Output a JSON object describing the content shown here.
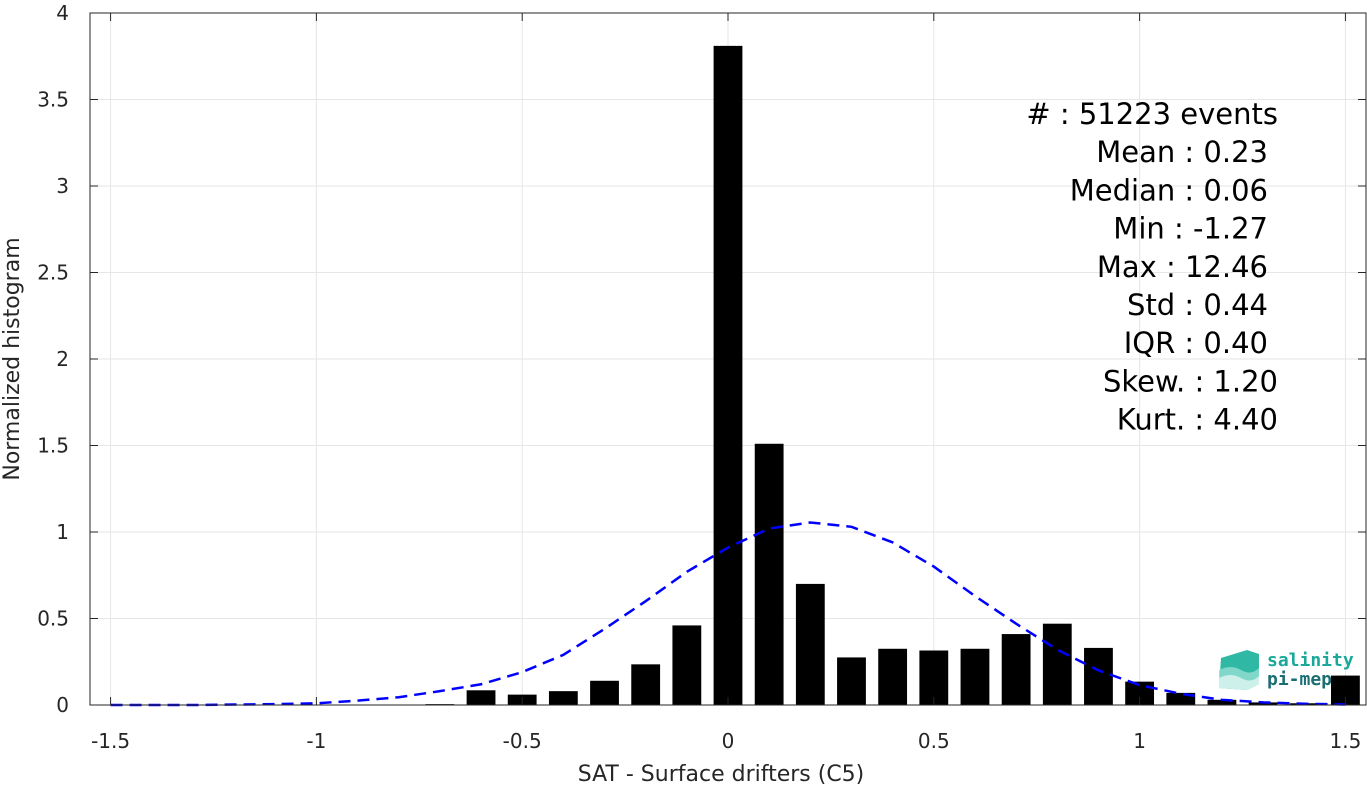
{
  "chart_data": {
    "type": "bar",
    "xlabel": "SAT - Surface drifters (C5)",
    "ylabel": "Normalized histogram",
    "xlim": [
      -1.55,
      1.55
    ],
    "ylim": [
      0,
      4
    ],
    "grid": true,
    "x_ticks": [
      -1.5,
      -1,
      -0.5,
      0,
      0.5,
      1,
      1.5
    ],
    "x_tick_labels": [
      "-1.5",
      "-1",
      "-0.5",
      "0",
      "0.5",
      "1",
      "1.5"
    ],
    "y_ticks": [
      0,
      0.5,
      1,
      1.5,
      2,
      2.5,
      3,
      3.5,
      4
    ],
    "y_tick_labels": [
      "0",
      "0.5",
      "1",
      "1.5",
      "2",
      "2.5",
      "3",
      "3.5",
      "4"
    ],
    "bar_width": 0.07,
    "bar_color": "#000000",
    "bars": {
      "x": [
        -1.5,
        -1.4,
        -1.3,
        -1.2,
        -1.1,
        -1.0,
        -0.9,
        -0.8,
        -0.7,
        -0.6,
        -0.5,
        -0.4,
        -0.3,
        -0.2,
        -0.1,
        0.0,
        0.1,
        0.2,
        0.3,
        0.4,
        0.5,
        0.6,
        0.7,
        0.8,
        0.9,
        1.0,
        1.1,
        1.2,
        1.3,
        1.4,
        1.5
      ],
      "values": [
        0,
        0,
        0,
        0,
        0,
        0,
        0,
        0,
        0.005,
        0.085,
        0.06,
        0.08,
        0.14,
        0.235,
        0.46,
        3.81,
        1.51,
        0.7,
        0.275,
        0.325,
        0.315,
        0.325,
        0.41,
        0.47,
        0.33,
        0.135,
        0.07,
        0.03,
        0.015,
        0.01,
        0.17
      ]
    },
    "fit_curve": {
      "name": "",
      "style": "dashed",
      "color": "#0000ff",
      "x": [
        -1.5,
        -1.3,
        -1.1,
        -1.0,
        -0.9,
        -0.8,
        -0.7,
        -0.6,
        -0.5,
        -0.4,
        -0.3,
        -0.2,
        -0.1,
        0.0,
        0.1,
        0.2,
        0.3,
        0.4,
        0.5,
        0.6,
        0.7,
        0.8,
        0.9,
        1.0,
        1.1,
        1.2,
        1.3,
        1.4,
        1.5
      ],
      "y": [
        0.0,
        0.0,
        0.005,
        0.01,
        0.025,
        0.045,
        0.08,
        0.12,
        0.19,
        0.29,
        0.44,
        0.6,
        0.77,
        0.91,
        1.02,
        1.055,
        1.03,
        0.94,
        0.8,
        0.63,
        0.47,
        0.32,
        0.2,
        0.115,
        0.065,
        0.03,
        0.015,
        0.007,
        0.003
      ]
    },
    "annotations": [
      "#  : 51223 events",
      "Mean : 0.23",
      "Median : 0.06",
      "Min : -1.27",
      "Max : 12.46",
      "Std : 0.44",
      "IQR : 0.40",
      "Skew. : 1.20",
      "Kurt. : 4.40"
    ]
  },
  "logo": {
    "line1": "salinity",
    "line2": "pi-mep",
    "color": "#1aa89a"
  }
}
